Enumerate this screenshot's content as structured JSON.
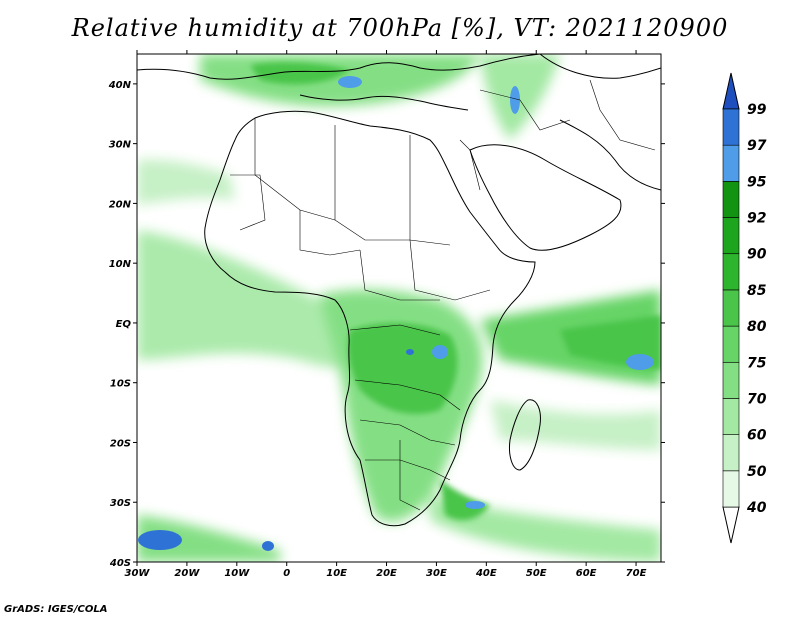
{
  "title": "Relative humidity at 700hPa [%], VT: 2021120900",
  "credit": "GrADS: IGES/COLA",
  "map": {
    "lon_range": [
      -30,
      75
    ],
    "lat_range": [
      -40,
      45
    ],
    "lat_ticks": [
      "40N",
      "30N",
      "20N",
      "10N",
      "EQ",
      "10S",
      "20S",
      "30S",
      "40S"
    ],
    "lat_values": [
      40,
      30,
      20,
      10,
      0,
      -10,
      -20,
      -30,
      -40
    ],
    "lon_ticks": [
      "30W",
      "20W",
      "10W",
      "0",
      "10E",
      "20E",
      "30E",
      "40E",
      "50E",
      "60E",
      "70E"
    ],
    "lon_values": [
      -30,
      -20,
      -10,
      0,
      10,
      20,
      30,
      40,
      50,
      60,
      70
    ]
  },
  "colorbar": {
    "levels": [
      "40",
      "50",
      "60",
      "70",
      "75",
      "80",
      "85",
      "90",
      "92",
      "95",
      "97",
      "99"
    ],
    "colors": [
      "#ffffff",
      "#e6f9e6",
      "#c6f0c6",
      "#a3e8a3",
      "#84df84",
      "#66d466",
      "#4ac54a",
      "#2eb52e",
      "#1ea51e",
      "#129412",
      "#4f9de8",
      "#2f72d6",
      "#1f4fbf"
    ]
  }
}
